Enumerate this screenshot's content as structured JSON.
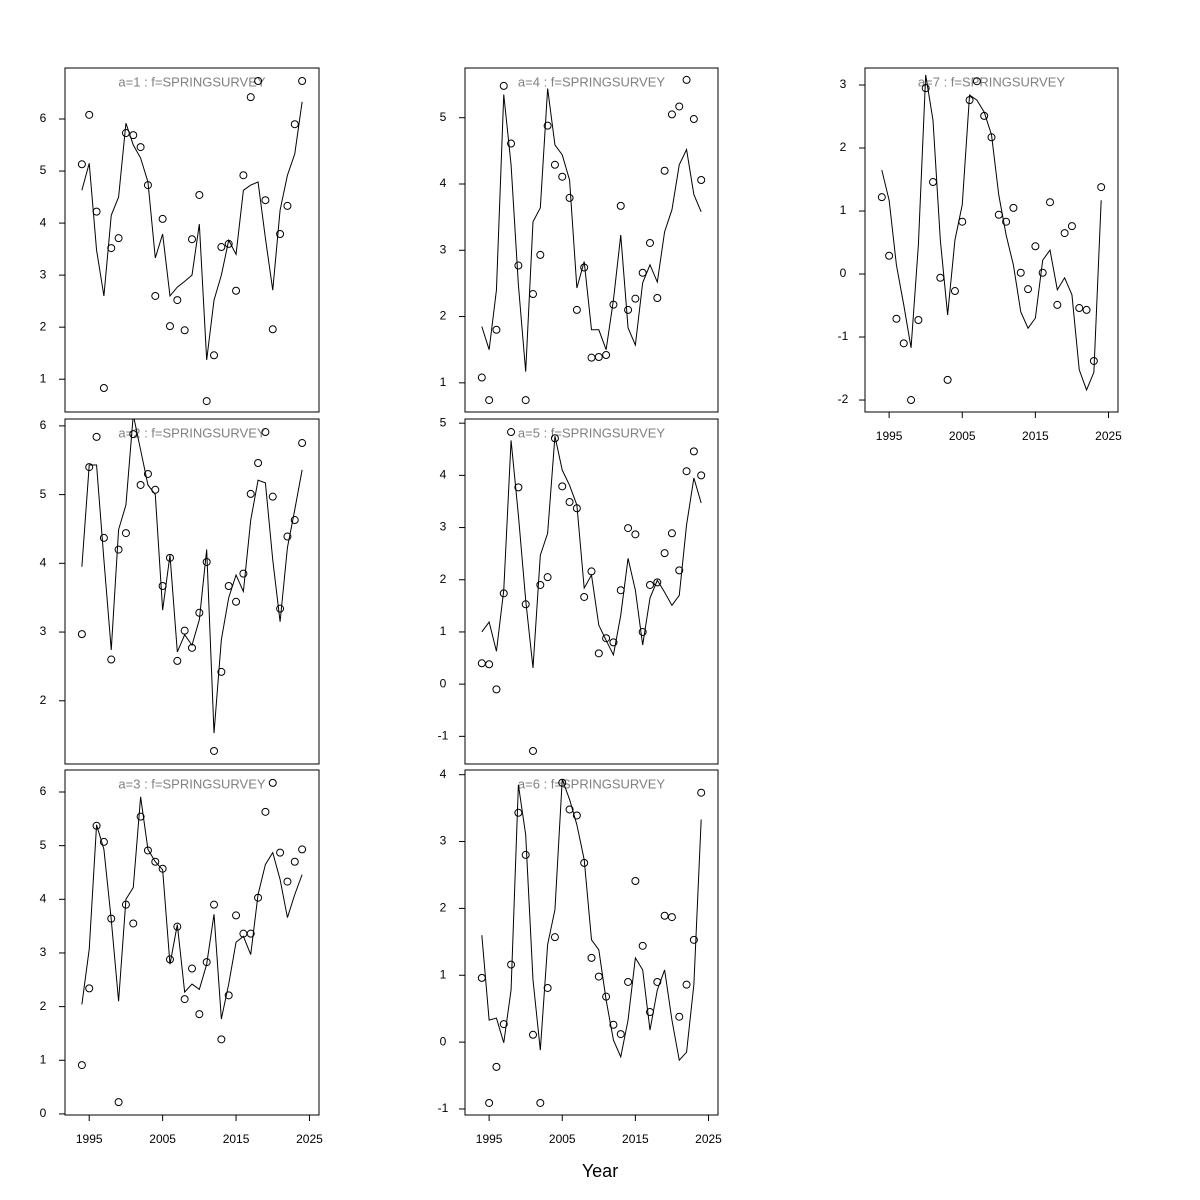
{
  "xlabel": "Year",
  "chart_data": [
    {
      "type": "line",
      "title": "a=1 : f=SPRINGSURVEY",
      "x": [
        1994,
        1995,
        1996,
        1997,
        1998,
        1999,
        2000,
        2001,
        2002,
        2003,
        2004,
        2005,
        2006,
        2007,
        2008,
        2009,
        2010,
        2011,
        2012,
        2013,
        2014,
        2015,
        2016,
        2017,
        2018,
        2019,
        2020,
        2021,
        2022,
        2023,
        2024
      ],
      "xlim": [
        1991.7,
        2026.3
      ],
      "ylim": [
        0.37,
        6.98
      ],
      "yticks": [
        1,
        2,
        3,
        4,
        5,
        6
      ],
      "series": [
        {
          "mark": "point",
          "color": "#000000",
          "values": [
            5.13,
            6.08,
            4.22,
            0.83,
            3.52,
            3.71,
            5.73,
            5.69,
            5.46,
            4.73,
            2.6,
            4.08,
            2.02,
            2.52,
            1.94,
            3.69,
            4.54,
            0.58,
            1.46,
            3.54,
            3.6,
            2.7,
            4.92,
            6.42,
            6.73,
            4.44,
            1.96,
            3.79,
            4.33,
            5.9,
            6.73
          ]
        },
        {
          "mark": "line",
          "color": "#000000",
          "values": [
            4.63,
            5.15,
            3.48,
            2.6,
            4.15,
            4.5,
            5.92,
            5.5,
            5.25,
            4.79,
            3.33,
            3.79,
            2.6,
            2.77,
            2.88,
            3.0,
            3.98,
            1.37,
            2.52,
            3.0,
            3.67,
            3.4,
            4.63,
            4.73,
            4.79,
            3.71,
            2.71,
            4.25,
            4.92,
            5.33,
            6.33
          ]
        }
      ]
    },
    {
      "type": "line",
      "title": "a=2 : f=SPRINGSURVEY",
      "x": [
        1994,
        1995,
        1996,
        1997,
        1998,
        1999,
        2000,
        2001,
        2002,
        2003,
        2004,
        2005,
        2006,
        2007,
        2008,
        2009,
        2010,
        2011,
        2012,
        2013,
        2014,
        2015,
        2016,
        2017,
        2018,
        2019,
        2020,
        2021,
        2022,
        2023,
        2024
      ],
      "xlim": [
        1991.7,
        2026.3
      ],
      "ylim": [
        1.08,
        6.1
      ],
      "yticks": [
        2,
        3,
        4,
        5,
        6
      ],
      "series": [
        {
          "mark": "point",
          "color": "#000000",
          "values": [
            2.97,
            5.4,
            5.84,
            4.37,
            2.6,
            4.2,
            4.44,
            5.88,
            5.14,
            5.3,
            5.07,
            3.67,
            4.08,
            2.58,
            3.02,
            2.77,
            3.28,
            4.02,
            1.27,
            2.42,
            3.67,
            3.44,
            3.85,
            5.01,
            5.46,
            5.91,
            4.97,
            3.34,
            4.39,
            4.63,
            5.75
          ]
        },
        {
          "mark": "line",
          "color": "#000000",
          "values": [
            3.95,
            5.43,
            5.43,
            4.05,
            2.74,
            4.49,
            4.85,
            6.16,
            5.65,
            5.14,
            5.0,
            3.32,
            4.12,
            2.71,
            2.96,
            2.81,
            3.18,
            4.2,
            1.53,
            2.89,
            3.5,
            3.83,
            3.59,
            4.63,
            5.21,
            5.17,
            4.05,
            3.15,
            4.23,
            4.78,
            5.36
          ]
        }
      ]
    },
    {
      "type": "line",
      "title": "a=3 : f=SPRINGSURVEY",
      "x": [
        1994,
        1995,
        1996,
        1997,
        1998,
        1999,
        2000,
        2001,
        2002,
        2003,
        2004,
        2005,
        2006,
        2007,
        2008,
        2009,
        2010,
        2011,
        2012,
        2013,
        2014,
        2015,
        2016,
        2017,
        2018,
        2019,
        2020,
        2021,
        2022,
        2023,
        2024
      ],
      "xlim": [
        1991.7,
        2026.3
      ],
      "ylim": [
        -0.02,
        6.41
      ],
      "yticks": [
        0,
        1,
        2,
        3,
        4,
        5,
        6
      ],
      "xticks": [
        1995,
        2005,
        2015,
        2025
      ],
      "series": [
        {
          "mark": "point",
          "color": "#000000",
          "values": [
            0.91,
            2.34,
            5.37,
            5.07,
            3.64,
            0.22,
            3.9,
            3.55,
            5.54,
            4.91,
            4.7,
            4.57,
            2.88,
            3.49,
            2.14,
            2.71,
            1.86,
            2.83,
            3.9,
            1.39,
            2.21,
            3.7,
            3.36,
            3.36,
            4.03,
            5.63,
            6.17,
            4.87,
            4.33,
            4.7,
            4.93
          ]
        },
        {
          "mark": "line",
          "color": "#000000",
          "values": [
            2.04,
            3.07,
            5.39,
            4.93,
            3.62,
            2.1,
            4.0,
            4.22,
            5.91,
            4.93,
            4.7,
            4.55,
            2.79,
            3.53,
            2.27,
            2.42,
            2.32,
            2.79,
            3.72,
            1.77,
            2.42,
            3.2,
            3.31,
            2.97,
            4.09,
            4.65,
            4.87,
            4.37,
            3.66,
            4.09,
            4.46
          ]
        }
      ]
    },
    {
      "type": "line",
      "title": "a=4 : f=SPRINGSURVEY",
      "x": [
        1994,
        1995,
        1996,
        1997,
        1998,
        1999,
        2000,
        2001,
        2002,
        2003,
        2004,
        2005,
        2006,
        2007,
        2008,
        2009,
        2010,
        2011,
        2012,
        2013,
        2014,
        2015,
        2016,
        2017,
        2018,
        2019,
        2020,
        2021,
        2022,
        2023,
        2024
      ],
      "xlim": [
        1991.7,
        2026.3
      ],
      "ylim": [
        0.56,
        5.75
      ],
      "yticks": [
        1,
        2,
        3,
        4,
        5
      ],
      "series": [
        {
          "mark": "point",
          "color": "#000000",
          "values": [
            1.08,
            0.74,
            1.8,
            5.48,
            4.61,
            2.77,
            0.74,
            2.34,
            2.93,
            4.88,
            4.29,
            4.11,
            3.79,
            2.1,
            2.74,
            1.38,
            1.39,
            1.42,
            2.18,
            3.67,
            2.1,
            2.27,
            2.66,
            3.11,
            2.28,
            4.2,
            5.05,
            5.17,
            5.57,
            4.98,
            4.06
          ]
        },
        {
          "mark": "line",
          "color": "#000000",
          "values": [
            1.85,
            1.5,
            2.4,
            5.35,
            4.29,
            2.48,
            1.17,
            3.43,
            3.64,
            5.44,
            4.59,
            4.44,
            4.06,
            2.43,
            2.83,
            1.8,
            1.8,
            1.5,
            2.25,
            3.23,
            1.83,
            1.57,
            2.51,
            2.78,
            2.52,
            3.28,
            3.61,
            4.29,
            4.52,
            3.84,
            3.58
          ]
        }
      ]
    },
    {
      "type": "line",
      "title": "a=5 : f=SPRINGSURVEY",
      "x": [
        1994,
        1995,
        1996,
        1997,
        1998,
        1999,
        2000,
        2001,
        2002,
        2003,
        2004,
        2005,
        2006,
        2007,
        2008,
        2009,
        2010,
        2011,
        2012,
        2013,
        2014,
        2015,
        2016,
        2017,
        2018,
        2019,
        2020,
        2021,
        2022,
        2023,
        2024
      ],
      "xlim": [
        1991.7,
        2026.3
      ],
      "ylim": [
        -1.53,
        5.08
      ],
      "yticks": [
        -1,
        0,
        1,
        2,
        3,
        4,
        5
      ],
      "series": [
        {
          "mark": "point",
          "color": "#000000",
          "values": [
            0.4,
            0.38,
            -0.1,
            1.74,
            4.83,
            3.77,
            1.53,
            -1.28,
            1.9,
            2.05,
            4.71,
            3.79,
            3.49,
            3.37,
            1.67,
            2.16,
            0.59,
            0.88,
            0.8,
            1.8,
            2.99,
            2.87,
            1.0,
            1.9,
            1.95,
            2.51,
            2.89,
            2.18,
            4.08,
            4.46,
            4.0
          ]
        },
        {
          "mark": "line",
          "color": "#000000",
          "values": [
            1.0,
            1.19,
            0.63,
            1.8,
            4.67,
            3.24,
            1.61,
            0.31,
            2.47,
            2.89,
            4.75,
            4.1,
            3.81,
            3.43,
            1.84,
            2.09,
            1.13,
            0.84,
            0.56,
            1.32,
            2.41,
            1.8,
            0.75,
            1.65,
            1.99,
            1.76,
            1.51,
            1.7,
            3.05,
            3.95,
            3.47
          ]
        }
      ]
    },
    {
      "type": "line",
      "title": "a=6 : f=SPRINGSURVEY",
      "x": [
        1994,
        1995,
        1996,
        1997,
        1998,
        1999,
        2000,
        2001,
        2002,
        2003,
        2004,
        2005,
        2006,
        2007,
        2008,
        2009,
        2010,
        2011,
        2012,
        2013,
        2014,
        2015,
        2016,
        2017,
        2018,
        2019,
        2020,
        2021,
        2022,
        2023,
        2024
      ],
      "xlim": [
        1991.7,
        2026.3
      ],
      "ylim": [
        -1.09,
        4.07
      ],
      "yticks": [
        -1,
        0,
        1,
        2,
        3,
        4
      ],
      "xticks": [
        1995,
        2005,
        2015,
        2025
      ],
      "series": [
        {
          "mark": "point",
          "color": "#000000",
          "values": [
            0.96,
            -0.91,
            -0.37,
            0.27,
            1.16,
            3.43,
            2.8,
            0.11,
            -0.91,
            0.81,
            1.57,
            3.88,
            3.48,
            3.39,
            2.68,
            1.26,
            0.98,
            0.68,
            0.26,
            0.12,
            0.9,
            2.41,
            1.44,
            0.45,
            0.9,
            1.89,
            1.87,
            0.38,
            0.86,
            1.53,
            3.73
          ]
        },
        {
          "mark": "line",
          "color": "#000000",
          "values": [
            1.6,
            0.33,
            0.36,
            -0.01,
            0.78,
            3.85,
            3.1,
            0.93,
            -0.12,
            1.46,
            1.98,
            3.93,
            3.63,
            3.25,
            2.73,
            1.53,
            1.38,
            0.63,
            0.03,
            -0.22,
            0.33,
            1.26,
            1.08,
            0.18,
            0.78,
            1.08,
            0.33,
            -0.27,
            -0.15,
            0.86,
            3.33
          ]
        }
      ]
    },
    {
      "type": "line",
      "title": "a=7 : f=SPRINGSURVEY",
      "x": [
        1994,
        1995,
        1996,
        1997,
        1998,
        1999,
        2000,
        2001,
        2002,
        2003,
        2004,
        2005,
        2006,
        2007,
        2008,
        2009,
        2010,
        2011,
        2012,
        2013,
        2014,
        2015,
        2016,
        2017,
        2018,
        2019,
        2020,
        2021,
        2022,
        2023,
        2024
      ],
      "xlim": [
        1991.7,
        2026.3
      ],
      "ylim": [
        -2.19,
        3.27
      ],
      "yticks": [
        -2,
        -1,
        0,
        1,
        2,
        3
      ],
      "xticks": [
        1995,
        2005,
        2015,
        2025
      ],
      "series": [
        {
          "mark": "point",
          "color": "#000000",
          "values": [
            1.22,
            0.29,
            -0.71,
            -1.1,
            -2.0,
            -0.73,
            2.95,
            1.46,
            -0.06,
            -1.68,
            -0.27,
            0.83,
            2.76,
            3.06,
            2.51,
            2.17,
            0.94,
            0.83,
            1.05,
            0.02,
            -0.24,
            0.44,
            0.02,
            1.14,
            -0.49,
            0.65,
            0.76,
            -0.54,
            -0.57,
            -1.38,
            1.38
          ]
        },
        {
          "mark": "line",
          "color": "#000000",
          "values": [
            1.65,
            1.17,
            0.14,
            -0.49,
            -1.17,
            0.46,
            3.16,
            2.44,
            0.54,
            -0.65,
            0.54,
            1.1,
            2.84,
            2.76,
            2.57,
            2.21,
            1.25,
            0.62,
            0.14,
            -0.6,
            -0.86,
            -0.7,
            0.22,
            0.38,
            -0.25,
            -0.06,
            -0.33,
            -1.52,
            -1.84,
            -1.56,
            1.17
          ]
        }
      ]
    }
  ]
}
